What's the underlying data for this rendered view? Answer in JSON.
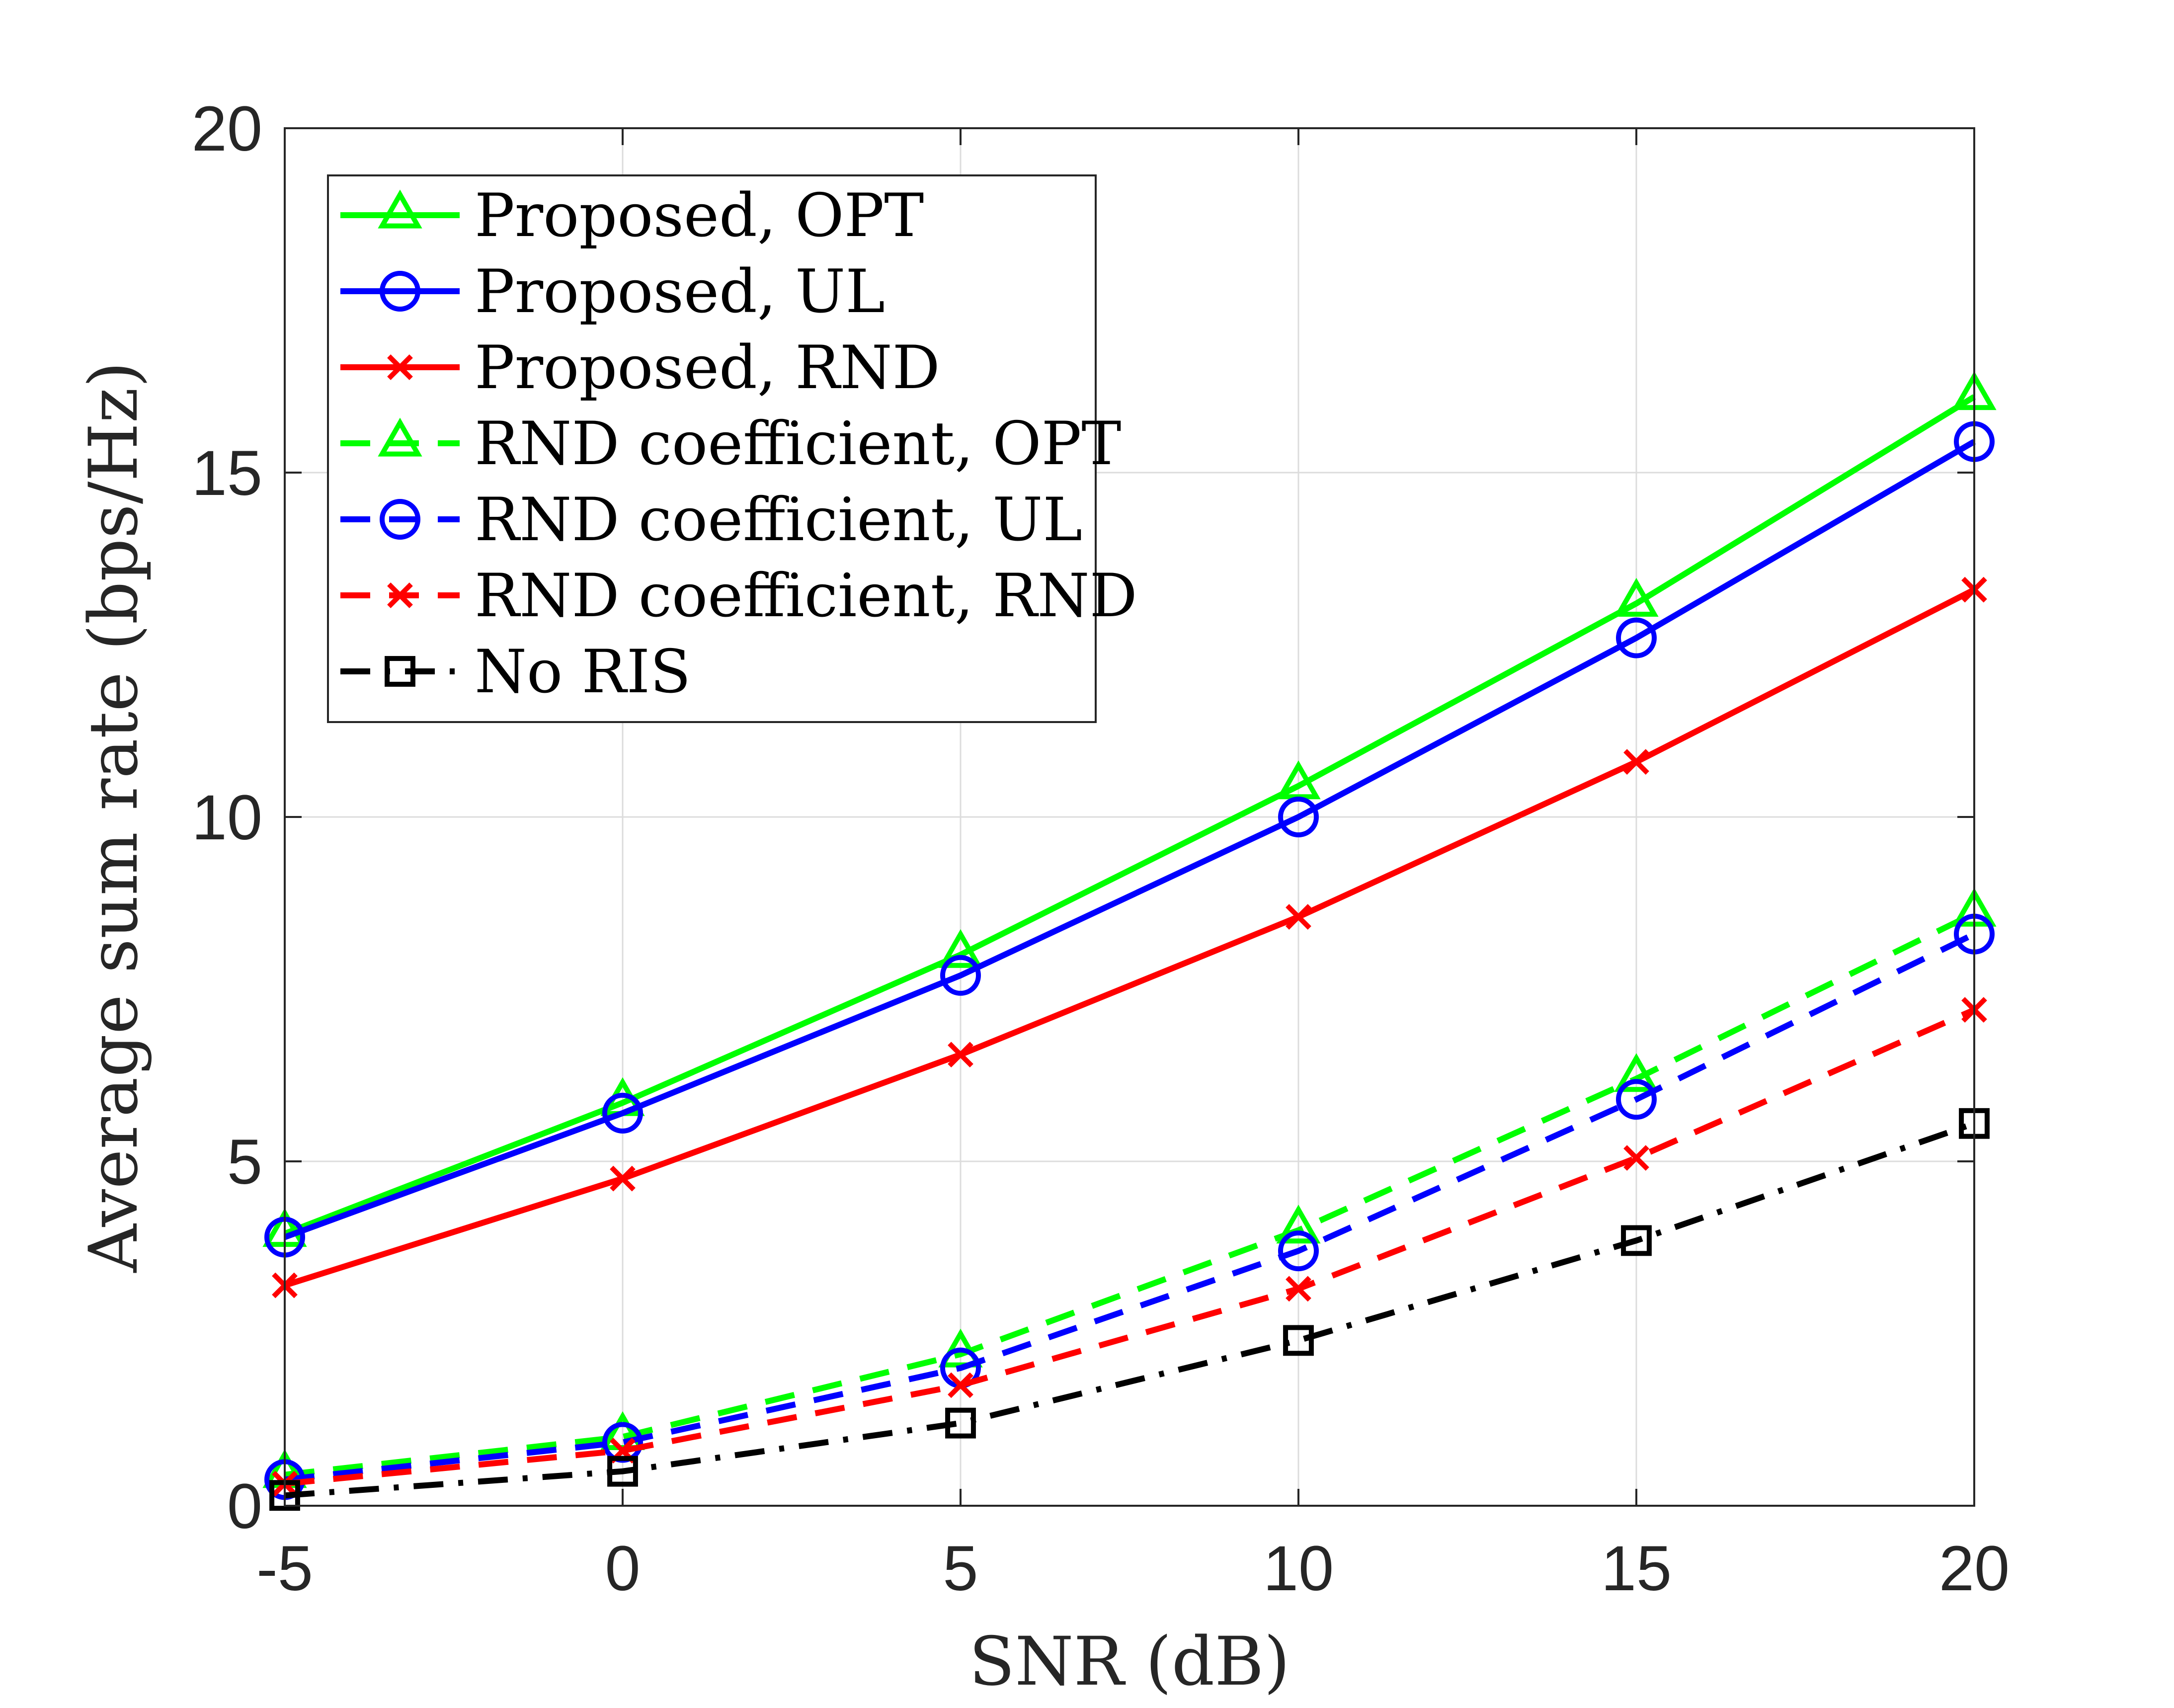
{
  "chart_data": {
    "type": "line",
    "title": "",
    "xlabel": "SNR (dB)",
    "ylabel": "Average sum rate (bps/Hz)",
    "xlim": [
      -5,
      20
    ],
    "ylim": [
      0,
      20
    ],
    "grid": true,
    "legend_position": "top-left",
    "x": [
      -5,
      0,
      5,
      10,
      15,
      20
    ],
    "xticks": [
      -5,
      0,
      5,
      10,
      15,
      20
    ],
    "yticks": [
      0,
      5,
      10,
      15,
      20
    ],
    "series": [
      {
        "name": "Proposed, OPT",
        "color": "#00ff00",
        "dash": "solid",
        "marker": "triangle",
        "values": [
          3.95,
          5.85,
          8.0,
          10.45,
          13.1,
          16.1
        ]
      },
      {
        "name": "Proposed, UL",
        "color": "#0000ff",
        "dash": "solid",
        "marker": "circle",
        "values": [
          3.9,
          5.7,
          7.7,
          10.0,
          12.6,
          15.45
        ]
      },
      {
        "name": "Proposed, RND",
        "color": "#ff0000",
        "dash": "solid",
        "marker": "x",
        "values": [
          3.2,
          4.75,
          6.55,
          8.55,
          10.8,
          13.3
        ]
      },
      {
        "name": "RND coefficient, OPT",
        "color": "#00ff00",
        "dash": "dashed",
        "marker": "triangle",
        "values": [
          0.45,
          1.0,
          2.2,
          4.0,
          6.2,
          8.6
        ]
      },
      {
        "name": "RND coefficient, UL",
        "color": "#0000ff",
        "dash": "dashed",
        "marker": "circle",
        "values": [
          0.38,
          0.92,
          2.0,
          3.7,
          5.9,
          8.3
        ]
      },
      {
        "name": "RND coefficient, RND",
        "color": "#ff0000",
        "dash": "dashed",
        "marker": "x",
        "values": [
          0.32,
          0.8,
          1.75,
          3.15,
          5.05,
          7.2
        ]
      },
      {
        "name": "No RIS",
        "color": "#000000",
        "dash": "dashdot",
        "marker": "square",
        "values": [
          0.15,
          0.5,
          1.2,
          2.4,
          3.85,
          5.55
        ]
      }
    ]
  }
}
